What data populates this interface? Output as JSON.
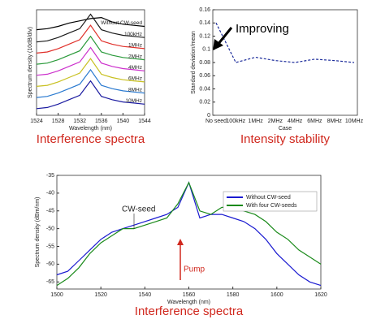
{
  "chart_data": [
    {
      "type": "line",
      "caption": "Interference spectra",
      "x_label": "Wavelength (nm)",
      "y_label": "Spectrum density (10dB/div)",
      "x": [
        1524,
        1526,
        1528,
        1530,
        1532,
        1534,
        1536,
        1538,
        1540,
        1542,
        1544
      ],
      "xlim": [
        1524,
        1544
      ],
      "xticks": [
        1524,
        1528,
        1532,
        1536,
        1540,
        1544
      ],
      "ylim": [
        -0.5,
        9
      ],
      "series": [
        {
          "name": "Without CW-seed",
          "color": "#000000",
          "values": [
            7.2,
            7.3,
            7.5,
            7.8,
            8.0,
            8.2,
            8.3,
            7.9,
            7.7,
            7.6,
            7.5
          ]
        },
        {
          "name": "100kHz",
          "color": "#1a1a1a",
          "values": [
            6.1,
            6.2,
            6.5,
            6.9,
            7.3,
            8.6,
            7.2,
            6.9,
            6.7,
            6.6,
            6.5
          ]
        },
        {
          "name": "1MHz",
          "color": "#e0302a",
          "values": [
            5.1,
            5.2,
            5.5,
            5.9,
            6.3,
            7.6,
            6.2,
            5.9,
            5.7,
            5.6,
            5.5
          ]
        },
        {
          "name": "2MHz",
          "color": "#2a9a3a",
          "values": [
            4.1,
            4.2,
            4.5,
            4.9,
            5.3,
            6.6,
            5.2,
            4.9,
            4.7,
            4.6,
            4.5
          ]
        },
        {
          "name": "4MHz",
          "color": "#cc2fcc",
          "values": [
            3.1,
            3.2,
            3.5,
            3.9,
            4.3,
            5.6,
            4.2,
            3.9,
            3.7,
            3.6,
            3.5
          ]
        },
        {
          "name": "6MHz",
          "color": "#c8c020",
          "values": [
            2.1,
            2.2,
            2.5,
            2.9,
            3.3,
            4.6,
            3.2,
            2.9,
            2.7,
            2.6,
            2.5
          ]
        },
        {
          "name": "8MHz",
          "color": "#2a7ad0",
          "values": [
            1.1,
            1.2,
            1.5,
            1.9,
            2.3,
            3.6,
            2.2,
            1.9,
            1.7,
            1.6,
            1.5
          ]
        },
        {
          "name": "10MHz",
          "color": "#1a1aa0",
          "values": [
            0.1,
            0.2,
            0.5,
            0.9,
            1.3,
            2.6,
            1.2,
            0.9,
            0.7,
            0.6,
            0.5
          ]
        }
      ]
    },
    {
      "type": "line",
      "caption": "Intensity stability",
      "x_label": "Case",
      "y_label": "Standard deviation/mean",
      "annotations": [
        "Improving"
      ],
      "categories": [
        "No seed",
        "100kHz",
        "1MHz",
        "2MHz",
        "4MHz",
        "6MHz",
        "8MHz",
        "10MHz"
      ],
      "ylim": [
        0,
        0.16
      ],
      "yticks": [
        0,
        0.02,
        0.04,
        0.06,
        0.08,
        0.1,
        0.12,
        0.14,
        0.16
      ],
      "series": [
        {
          "color": "#1a2a9a",
          "dashed": true,
          "values": [
            0.14,
            0.08,
            0.088,
            0.083,
            0.08,
            0.085,
            0.083,
            0.08
          ]
        }
      ]
    },
    {
      "type": "line",
      "caption": "Interference spectra",
      "x_label": "Wavelength (nm)",
      "y_label": "Spectrum density (dBm/nm)",
      "annotations": [
        "CW-seed",
        "Pump"
      ],
      "x": [
        1500,
        1505,
        1510,
        1515,
        1520,
        1525,
        1530,
        1535,
        1540,
        1545,
        1550,
        1555,
        1560,
        1565,
        1570,
        1575,
        1580,
        1585,
        1590,
        1595,
        1600,
        1605,
        1610,
        1615,
        1620
      ],
      "xlim": [
        1500,
        1620
      ],
      "xticks": [
        1500,
        1520,
        1540,
        1560,
        1580,
        1600,
        1620
      ],
      "ylim": [
        -67,
        -35
      ],
      "yticks": [
        -35,
        -40,
        -45,
        -50,
        -55,
        -60,
        -65
      ],
      "legend": "top-right",
      "series": [
        {
          "name": "Without CW-seed",
          "color": "#1a1ad0",
          "values": [
            -63,
            -62,
            -59,
            -56,
            -53,
            -51,
            -50,
            -49,
            -48,
            -47,
            -46,
            -44,
            -37,
            -47,
            -46,
            -46,
            -47,
            -48,
            -50,
            -53,
            -57,
            -60,
            -63,
            -65,
            -66
          ]
        },
        {
          "name": "With four CW-seeds",
          "color": "#1a8a1a",
          "values": [
            -66,
            -64,
            -61,
            -57,
            -54,
            -52,
            -50,
            -50,
            -49,
            -48,
            -47,
            -43,
            -37,
            -45,
            -46,
            -44,
            -44,
            -45,
            -46,
            -48,
            -51,
            -53,
            -56,
            -58,
            -60
          ]
        }
      ]
    }
  ]
}
